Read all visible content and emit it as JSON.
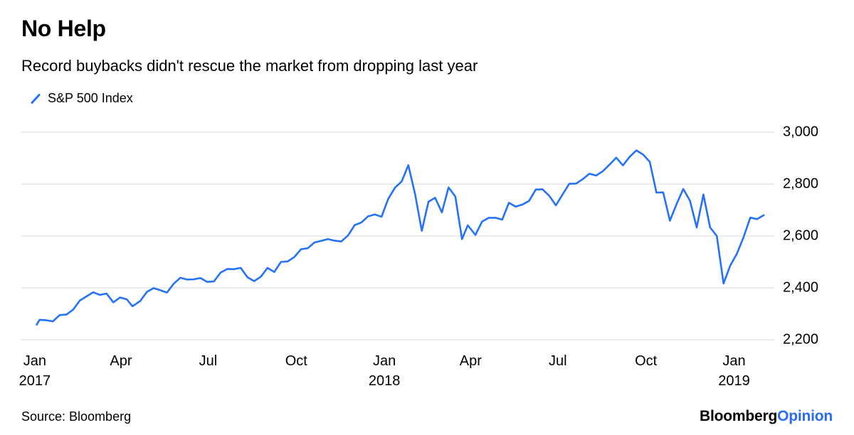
{
  "header": {
    "title": "No Help",
    "subtitle": "Record buybacks didn't rescue the market from dropping last year"
  },
  "legend": {
    "label": "S&P 500 Index"
  },
  "footer": {
    "source": "Source: Bloomberg",
    "logo": {
      "part1": "Bloomberg",
      "part2": "Opinion"
    }
  },
  "colors": {
    "line": "#2472f8",
    "grid": "#d8d8d8",
    "text": "#000000",
    "logo_opinion": "#2a6cf4"
  },
  "chart_data": {
    "type": "line",
    "title": "No Help",
    "subtitle": "Record buybacks didn't rescue the market from dropping last year",
    "xlabel": "",
    "ylabel": "",
    "grid": "horizontal",
    "legend_position": "top-left",
    "y_axis_side": "right",
    "ylim": [
      2200,
      3000
    ],
    "yticks": [
      2200,
      2400,
      2600,
      2800,
      3000
    ],
    "xlim": [
      "2016-12-18",
      "2019-02-12"
    ],
    "xticks": [
      {
        "date": "2017-01-01",
        "label": "Jan",
        "year": "2017"
      },
      {
        "date": "2017-04-01",
        "label": "Apr"
      },
      {
        "date": "2017-07-01",
        "label": "Jul"
      },
      {
        "date": "2017-10-01",
        "label": "Oct"
      },
      {
        "date": "2018-01-01",
        "label": "Jan",
        "year": "2018"
      },
      {
        "date": "2018-04-01",
        "label": "Apr"
      },
      {
        "date": "2018-07-01",
        "label": "Jul"
      },
      {
        "date": "2018-10-01",
        "label": "Oct"
      },
      {
        "date": "2019-01-01",
        "label": "Jan",
        "year": "2019"
      }
    ],
    "series": [
      {
        "name": "S&P 500 Index",
        "color": "#2472f8",
        "points": [
          [
            "2017-01-03",
            2258
          ],
          [
            "2017-01-06",
            2277
          ],
          [
            "2017-01-13",
            2275
          ],
          [
            "2017-01-20",
            2271
          ],
          [
            "2017-01-27",
            2295
          ],
          [
            "2017-02-03",
            2297
          ],
          [
            "2017-02-10",
            2316
          ],
          [
            "2017-02-17",
            2351
          ],
          [
            "2017-02-24",
            2367
          ],
          [
            "2017-03-03",
            2383
          ],
          [
            "2017-03-10",
            2373
          ],
          [
            "2017-03-17",
            2378
          ],
          [
            "2017-03-24",
            2344
          ],
          [
            "2017-03-31",
            2363
          ],
          [
            "2017-04-07",
            2356
          ],
          [
            "2017-04-13",
            2329
          ],
          [
            "2017-04-21",
            2349
          ],
          [
            "2017-04-28",
            2384
          ],
          [
            "2017-05-05",
            2399
          ],
          [
            "2017-05-12",
            2391
          ],
          [
            "2017-05-19",
            2382
          ],
          [
            "2017-05-26",
            2416
          ],
          [
            "2017-06-02",
            2439
          ],
          [
            "2017-06-09",
            2432
          ],
          [
            "2017-06-16",
            2433
          ],
          [
            "2017-06-23",
            2438
          ],
          [
            "2017-06-30",
            2423
          ],
          [
            "2017-07-07",
            2425
          ],
          [
            "2017-07-14",
            2459
          ],
          [
            "2017-07-21",
            2473
          ],
          [
            "2017-07-28",
            2472
          ],
          [
            "2017-08-04",
            2477
          ],
          [
            "2017-08-11",
            2441
          ],
          [
            "2017-08-18",
            2426
          ],
          [
            "2017-08-25",
            2443
          ],
          [
            "2017-09-01",
            2477
          ],
          [
            "2017-09-08",
            2461
          ],
          [
            "2017-09-15",
            2500
          ],
          [
            "2017-09-22",
            2502
          ],
          [
            "2017-09-29",
            2519
          ],
          [
            "2017-10-06",
            2549
          ],
          [
            "2017-10-13",
            2553
          ],
          [
            "2017-10-20",
            2575
          ],
          [
            "2017-10-27",
            2581
          ],
          [
            "2017-11-03",
            2588
          ],
          [
            "2017-11-10",
            2582
          ],
          [
            "2017-11-17",
            2579
          ],
          [
            "2017-11-24",
            2602
          ],
          [
            "2017-12-01",
            2642
          ],
          [
            "2017-12-08",
            2652
          ],
          [
            "2017-12-15",
            2676
          ],
          [
            "2017-12-22",
            2683
          ],
          [
            "2017-12-29",
            2674
          ],
          [
            "2018-01-05",
            2743
          ],
          [
            "2018-01-12",
            2786
          ],
          [
            "2018-01-19",
            2810
          ],
          [
            "2018-01-26",
            2873
          ],
          [
            "2018-02-02",
            2762
          ],
          [
            "2018-02-09",
            2620
          ],
          [
            "2018-02-16",
            2732
          ],
          [
            "2018-02-23",
            2747
          ],
          [
            "2018-03-02",
            2691
          ],
          [
            "2018-03-09",
            2787
          ],
          [
            "2018-03-16",
            2752
          ],
          [
            "2018-03-23",
            2588
          ],
          [
            "2018-03-29",
            2641
          ],
          [
            "2018-04-06",
            2604
          ],
          [
            "2018-04-13",
            2656
          ],
          [
            "2018-04-20",
            2670
          ],
          [
            "2018-04-27",
            2670
          ],
          [
            "2018-05-04",
            2663
          ],
          [
            "2018-05-11",
            2728
          ],
          [
            "2018-05-18",
            2713
          ],
          [
            "2018-05-25",
            2721
          ],
          [
            "2018-06-01",
            2735
          ],
          [
            "2018-06-08",
            2779
          ],
          [
            "2018-06-15",
            2780
          ],
          [
            "2018-06-22",
            2755
          ],
          [
            "2018-06-29",
            2718
          ],
          [
            "2018-07-06",
            2760
          ],
          [
            "2018-07-13",
            2801
          ],
          [
            "2018-07-20",
            2802
          ],
          [
            "2018-07-27",
            2819
          ],
          [
            "2018-08-03",
            2840
          ],
          [
            "2018-08-10",
            2833
          ],
          [
            "2018-08-17",
            2850
          ],
          [
            "2018-08-24",
            2875
          ],
          [
            "2018-08-31",
            2902
          ],
          [
            "2018-09-07",
            2872
          ],
          [
            "2018-09-14",
            2905
          ],
          [
            "2018-09-21",
            2930
          ],
          [
            "2018-09-28",
            2914
          ],
          [
            "2018-10-05",
            2886
          ],
          [
            "2018-10-12",
            2767
          ],
          [
            "2018-10-19",
            2768
          ],
          [
            "2018-10-26",
            2659
          ],
          [
            "2018-11-02",
            2723
          ],
          [
            "2018-11-09",
            2781
          ],
          [
            "2018-11-16",
            2736
          ],
          [
            "2018-11-23",
            2633
          ],
          [
            "2018-11-30",
            2760
          ],
          [
            "2018-12-07",
            2633
          ],
          [
            "2018-12-14",
            2600
          ],
          [
            "2018-12-21",
            2417
          ],
          [
            "2018-12-28",
            2486
          ],
          [
            "2019-01-04",
            2532
          ],
          [
            "2019-01-11",
            2596
          ],
          [
            "2019-01-18",
            2671
          ],
          [
            "2019-01-25",
            2665
          ],
          [
            "2019-02-01",
            2680
          ]
        ]
      }
    ]
  }
}
